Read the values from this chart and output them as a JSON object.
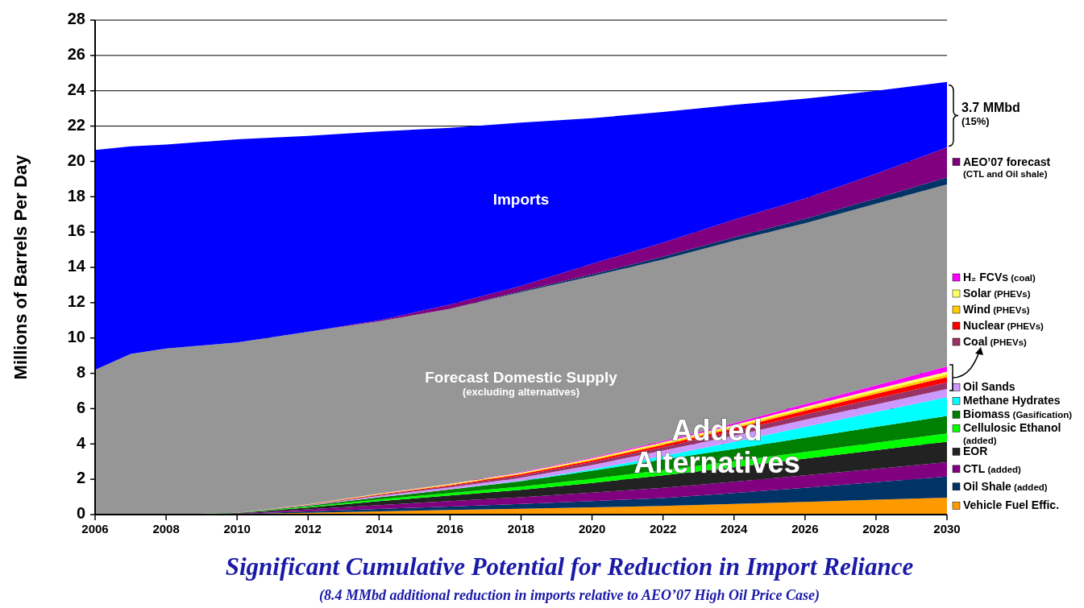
{
  "chart_data": {
    "type": "area",
    "stacked": true,
    "x": [
      2006,
      2007,
      2008,
      2010,
      2012,
      2014,
      2016,
      2018,
      2020,
      2022,
      2024,
      2026,
      2028,
      2030
    ],
    "xlim": [
      2006,
      2030
    ],
    "xticks": [
      2006,
      2008,
      2010,
      2012,
      2014,
      2016,
      2018,
      2020,
      2022,
      2024,
      2026,
      2028,
      2030
    ],
    "ylim": [
      0,
      28
    ],
    "yticks": [
      0,
      2,
      4,
      6,
      8,
      10,
      12,
      14,
      16,
      18,
      20,
      22,
      24,
      26,
      28
    ],
    "ylabel": "Millions of Barrels Per Day",
    "grid": "y",
    "legend": "right",
    "series": [
      {
        "name": "Vehicle Fuel Effic.",
        "color": "#ff9900",
        "values": [
          0,
          0,
          0,
          0.03,
          0.1,
          0.18,
          0.26,
          0.33,
          0.41,
          0.49,
          0.6,
          0.72,
          0.84,
          0.96
        ]
      },
      {
        "name": "Oil Shale (added)",
        "color": "#003366",
        "values": [
          0,
          0,
          0,
          0.02,
          0.08,
          0.14,
          0.2,
          0.27,
          0.35,
          0.45,
          0.62,
          0.8,
          1.0,
          1.2
        ]
      },
      {
        "name": "CTL (added)",
        "color": "#800080",
        "values": [
          0,
          0,
          0,
          0.02,
          0.12,
          0.22,
          0.3,
          0.38,
          0.48,
          0.58,
          0.64,
          0.7,
          0.75,
          0.8
        ]
      },
      {
        "name": "EOR",
        "color": "#222222",
        "values": [
          0,
          0,
          0,
          0.02,
          0.1,
          0.22,
          0.32,
          0.42,
          0.55,
          0.7,
          0.82,
          0.95,
          1.06,
          1.17
        ]
      },
      {
        "name": "Cellulosic Ethanol (added)",
        "color": "#00ff00",
        "values": [
          0,
          0,
          0,
          0.01,
          0.05,
          0.1,
          0.14,
          0.19,
          0.24,
          0.3,
          0.34,
          0.38,
          0.42,
          0.46
        ]
      },
      {
        "name": "Biomass (Gasification)",
        "color": "#008000",
        "values": [
          0,
          0,
          0,
          0,
          0.05,
          0.12,
          0.2,
          0.3,
          0.45,
          0.6,
          0.7,
          0.8,
          0.9,
          1.0
        ]
      },
      {
        "name": "Methane Hydrates",
        "color": "#00ffff",
        "values": [
          0,
          0,
          0,
          0,
          0,
          0,
          0,
          0.02,
          0.08,
          0.2,
          0.4,
          0.62,
          0.84,
          1.06
        ]
      },
      {
        "name": "Oil Sands",
        "color": "#cc99ff",
        "values": [
          0,
          0,
          0,
          0,
          0.03,
          0.08,
          0.12,
          0.18,
          0.25,
          0.3,
          0.35,
          0.4,
          0.43,
          0.46
        ]
      },
      {
        "name": "Coal (PHEVs)",
        "color": "#993366",
        "values": [
          0,
          0,
          0,
          0,
          0.02,
          0.05,
          0.08,
          0.12,
          0.16,
          0.2,
          0.25,
          0.3,
          0.34,
          0.38
        ]
      },
      {
        "name": "Nuclear (PHEVs)",
        "color": "#ff0000",
        "values": [
          0,
          0,
          0,
          0,
          0.01,
          0.03,
          0.05,
          0.08,
          0.1,
          0.13,
          0.17,
          0.21,
          0.26,
          0.3
        ]
      },
      {
        "name": "Wind (PHEVs)",
        "color": "#ffcc00",
        "values": [
          0,
          0,
          0,
          0,
          0.01,
          0.02,
          0.03,
          0.04,
          0.06,
          0.07,
          0.09,
          0.11,
          0.13,
          0.15
        ]
      },
      {
        "name": "Solar (PHEVs)",
        "color": "#ffff66",
        "values": [
          0,
          0,
          0,
          0,
          0.01,
          0.02,
          0.03,
          0.04,
          0.05,
          0.07,
          0.09,
          0.11,
          0.13,
          0.15
        ]
      },
      {
        "name": "H₂ FCVs (coal)",
        "color": "#ff00ff",
        "values": [
          0,
          0,
          0,
          0,
          0,
          0.01,
          0.02,
          0.03,
          0.05,
          0.07,
          0.11,
          0.16,
          0.22,
          0.3
        ]
      },
      {
        "name": "Forecast Domestic Supply (excluding alternatives)",
        "color": "#969696",
        "values": [
          8.2,
          9.1,
          9.4,
          9.65,
          9.77,
          9.76,
          9.9,
          10.2,
          10.27,
          10.29,
          10.32,
          10.24,
          10.28,
          10.31
        ]
      },
      {
        "color": "#003366",
        "values": [
          0,
          0,
          0,
          0,
          0,
          0,
          0,
          0.05,
          0.1,
          0.15,
          0.2,
          0.25,
          0.3,
          0.4
        ]
      },
      {
        "name": "AEO’07 forecast (CTL and Oil shale)",
        "color": "#800080",
        "values": [
          0,
          0,
          0,
          0,
          0,
          0.05,
          0.25,
          0.3,
          0.6,
          0.8,
          1.0,
          1.15,
          1.4,
          1.7
        ]
      },
      {
        "name": "Imports",
        "color": "#0000ff",
        "values": [
          12.45,
          11.75,
          11.55,
          11.5,
          11.1,
          10.7,
          10.0,
          9.25,
          8.25,
          7.4,
          6.5,
          5.65,
          4.7,
          3.7
        ]
      }
    ],
    "annotations": [
      "Added Alternatives",
      {
        "text": "3.7 MMbd (15%)",
        "x": 2030,
        "y": 22.6
      },
      "Significant Cumulative Potential for Reduction in Import Reliance",
      "(8.4 MMbd additional reduction in imports relative to AEO’07 High Oil Price Case)"
    ]
  }
}
